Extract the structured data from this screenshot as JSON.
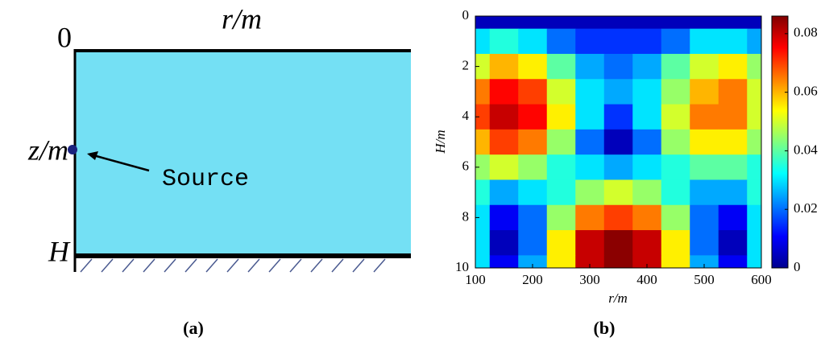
{
  "diagram": {
    "r_label": "r/m",
    "zero_label": "0",
    "z_label": "z/m",
    "depth_label": "H",
    "source_label": "Source",
    "caption": "(a)"
  },
  "chart_data": {
    "type": "heatmap",
    "caption": "(b)",
    "xlabel": "r/m",
    "ylabel": "H/m",
    "x": [
      100,
      150,
      200,
      250,
      300,
      350,
      400,
      450,
      500,
      550,
      600
    ],
    "y": [
      0,
      1,
      2,
      3,
      4,
      5,
      6,
      7,
      8,
      9,
      10
    ],
    "values": [
      [
        0.005,
        0.005,
        0.005,
        0.005,
        0.005,
        0.005,
        0.005,
        0.005,
        0.005,
        0.005,
        0.005
      ],
      [
        0.03,
        0.035,
        0.03,
        0.02,
        0.015,
        0.015,
        0.015,
        0.02,
        0.03,
        0.03,
        0.025
      ],
      [
        0.05,
        0.06,
        0.055,
        0.04,
        0.025,
        0.02,
        0.025,
        0.04,
        0.05,
        0.055,
        0.045
      ],
      [
        0.065,
        0.075,
        0.07,
        0.05,
        0.03,
        0.025,
        0.03,
        0.045,
        0.06,
        0.065,
        0.05
      ],
      [
        0.07,
        0.08,
        0.075,
        0.055,
        0.03,
        0.015,
        0.03,
        0.05,
        0.065,
        0.065,
        0.05
      ],
      [
        0.06,
        0.07,
        0.065,
        0.045,
        0.02,
        0.005,
        0.02,
        0.045,
        0.055,
        0.055,
        0.045
      ],
      [
        0.045,
        0.05,
        0.045,
        0.035,
        0.03,
        0.025,
        0.03,
        0.035,
        0.04,
        0.04,
        0.035
      ],
      [
        0.035,
        0.025,
        0.03,
        0.035,
        0.045,
        0.05,
        0.045,
        0.035,
        0.025,
        0.025,
        0.035
      ],
      [
        0.03,
        0.01,
        0.02,
        0.045,
        0.065,
        0.07,
        0.065,
        0.045,
        0.02,
        0.01,
        0.03
      ],
      [
        0.03,
        0.005,
        0.02,
        0.055,
        0.08,
        0.085,
        0.08,
        0.055,
        0.02,
        0.005,
        0.03
      ],
      [
        0.03,
        0.01,
        0.025,
        0.055,
        0.08,
        0.085,
        0.08,
        0.055,
        0.025,
        0.01,
        0.03
      ]
    ],
    "xlim": [
      100,
      600
    ],
    "xticks": [
      100,
      200,
      300,
      400,
      500,
      600
    ],
    "ylim": [
      0,
      10
    ],
    "yticks": [
      0,
      2,
      4,
      6,
      8,
      10
    ],
    "y_inverted": true,
    "colormap": "jet",
    "clim": [
      0,
      0.086
    ],
    "cticks": [
      0,
      0.02,
      0.04,
      0.06,
      0.08
    ]
  }
}
